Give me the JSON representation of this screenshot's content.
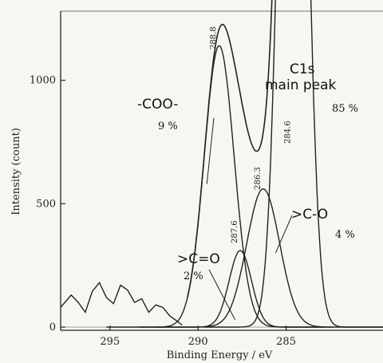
{
  "chart_data": {
    "type": "line",
    "title": "",
    "xlabel": "Binding Energy / eV",
    "ylabel": "Intensity (count)",
    "x_reversed": true,
    "xlim": [
      297.8,
      279.5
    ],
    "ylim": [
      0,
      1280
    ],
    "x_ticks": [
      {
        "value": 295,
        "label": "295"
      },
      {
        "value": 290,
        "label": "290"
      },
      {
        "value": 285,
        "label": "285"
      }
    ],
    "y_ticks": [
      {
        "value": 0,
        "label": "0"
      },
      {
        "value": 500,
        "label": "500"
      },
      {
        "value": 1000,
        "label": "1000"
      }
    ],
    "components": [
      {
        "name": "-COO-",
        "center": 288.8,
        "center_label": "288.8",
        "height": 1140,
        "fwhm": 2.0,
        "percent_label": "9 %"
      },
      {
        "name": ">C=O",
        "center": 287.6,
        "center_label": "287.6",
        "height": 310,
        "fwhm": 1.5,
        "percent_label": "2 %"
      },
      {
        "name": ">C-O",
        "center": 286.3,
        "center_label": "286.3",
        "height": 560,
        "fwhm": 2.2,
        "percent_label": "4 %"
      },
      {
        "name": "C1s main peak",
        "center": 284.6,
        "center_label": "284.6",
        "height": 4000,
        "fwhm": 1.6,
        "percent_label": "85 %"
      }
    ],
    "envelope": {
      "dip_x": 287.2,
      "dip_y": 630
    },
    "baseline": {
      "x": [
        297.8,
        297.2,
        296.8,
        296.4,
        296.0,
        295.6,
        295.2,
        294.8,
        294.4,
        294.0,
        293.6,
        293.2,
        292.8,
        292.4,
        292.0,
        291.6,
        291.2,
        290.9
      ],
      "y": [
        80,
        130,
        100,
        60,
        145,
        180,
        120,
        95,
        170,
        150,
        100,
        115,
        60,
        90,
        80,
        45,
        25,
        8
      ]
    },
    "annotations": {
      "coo": {
        "label": "-COO-",
        "pct": "9 %"
      },
      "co_double": {
        "label": ">C=O",
        "pct": "2 %"
      },
      "co_single": {
        "label": ">C-O",
        "pct": "4 %"
      },
      "main": {
        "label_line1": "C1s",
        "label_line2": "main peak",
        "pct": "85 %"
      }
    }
  }
}
